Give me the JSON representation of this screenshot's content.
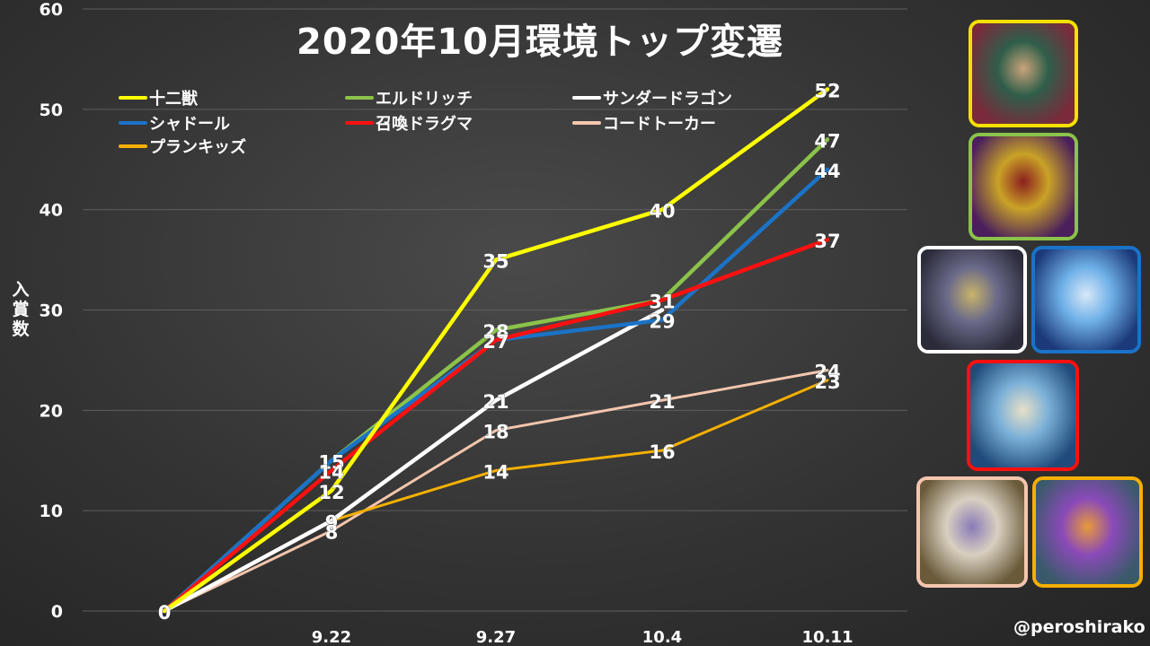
{
  "title": "2020年10月環境トップ変遷",
  "ylabel": "入賞数",
  "credit": "@peroshirako",
  "chart_data": {
    "type": "line",
    "title": "2020年10月環境トップ変遷",
    "ylabel": "入賞数",
    "xlabel": "",
    "categories": [
      "",
      "9.22",
      "9.27",
      "10.4",
      "10.11"
    ],
    "ylim": [
      0,
      60
    ],
    "yticks": [
      "0",
      "10",
      "20",
      "30",
      "40",
      "50",
      "60"
    ],
    "grid": true,
    "legend": "top-left",
    "series": [
      {
        "name": "十二獣",
        "color": "#ffff00",
        "values": [
          0,
          12,
          35,
          40,
          52
        ]
      },
      {
        "name": "エルドリッチ",
        "color": "#8bc34a",
        "values": [
          0,
          15,
          28,
          31,
          47
        ]
      },
      {
        "name": "サンダードラゴン",
        "color": "#ffffff",
        "values": [
          0,
          9,
          21,
          30,
          null
        ]
      },
      {
        "name": "シャドール",
        "color": "#1a73c8",
        "values": [
          0,
          15,
          27,
          29,
          44
        ]
      },
      {
        "name": "召喚ドラグマ",
        "color": "#ff1010",
        "values": [
          0,
          14,
          27,
          31,
          37
        ]
      },
      {
        "name": "コードトーカー",
        "color": "#f4c6ad",
        "values": [
          0,
          8,
          18,
          21,
          24
        ]
      },
      {
        "name": "プランキッズ",
        "color": "#f5b000",
        "values": [
          0,
          9,
          14,
          16,
          23
        ]
      }
    ],
    "data_labels": [
      {
        "series": 0,
        "point": 0,
        "text": "0"
      },
      {
        "series": 0,
        "point": 1,
        "text": "12"
      },
      {
        "series": 3,
        "point": 1,
        "text": "15"
      },
      {
        "series": 4,
        "point": 1,
        "text": "14"
      },
      {
        "series": 2,
        "point": 1,
        "text": "9"
      },
      {
        "series": 5,
        "point": 1,
        "text": "8"
      },
      {
        "series": 0,
        "point": 2,
        "text": "35"
      },
      {
        "series": 1,
        "point": 2,
        "text": "28"
      },
      {
        "series": 3,
        "point": 2,
        "text": "27"
      },
      {
        "series": 2,
        "point": 2,
        "text": "21"
      },
      {
        "series": 5,
        "point": 2,
        "text": "18"
      },
      {
        "series": 6,
        "point": 2,
        "text": "14"
      },
      {
        "series": 0,
        "point": 3,
        "text": "40"
      },
      {
        "series": 1,
        "point": 3,
        "text": "31"
      },
      {
        "series": 3,
        "point": 3,
        "text": "29"
      },
      {
        "series": 5,
        "point": 3,
        "text": "21"
      },
      {
        "series": 6,
        "point": 3,
        "text": "16"
      },
      {
        "series": 0,
        "point": 4,
        "text": "52"
      },
      {
        "series": 1,
        "point": 4,
        "text": "47"
      },
      {
        "series": 3,
        "point": 4,
        "text": "44"
      },
      {
        "series": 4,
        "point": 4,
        "text": "37"
      },
      {
        "series": 5,
        "point": 4,
        "text": "24"
      },
      {
        "series": 6,
        "point": 4,
        "text": "23"
      }
    ]
  },
  "cards": [
    {
      "name": "十二獣",
      "border": "#f5e000",
      "colors": [
        "#7a2a3a",
        "#2f5e4a",
        "#c9a37a"
      ]
    },
    {
      "name": "エルドリッチ",
      "border": "#8bc34a",
      "colors": [
        "#4a1f5c",
        "#c9a227",
        "#8a1f1f"
      ]
    },
    {
      "name": "サンダードラゴン",
      "border": "#ffffff",
      "colors": [
        "#2b2b3a",
        "#6a6a8a",
        "#c9b36a"
      ]
    },
    {
      "name": "シャドール",
      "border": "#1a73c8",
      "colors": [
        "#1c3a7a",
        "#6fb0e8",
        "#d8e8f8"
      ]
    },
    {
      "name": "召喚ドラグマ",
      "border": "#ff1010",
      "colors": [
        "#1f4a7a",
        "#7ab0d8",
        "#e8e0c8"
      ]
    },
    {
      "name": "コードトーカー",
      "border": "#f4c6ad",
      "colors": [
        "#6a5a3a",
        "#d8d0c0",
        "#8a7ab8"
      ]
    },
    {
      "name": "プランキッズ",
      "border": "#f5b000",
      "colors": [
        "#3a5a6a",
        "#8a4ab8",
        "#e89a3a"
      ]
    }
  ]
}
